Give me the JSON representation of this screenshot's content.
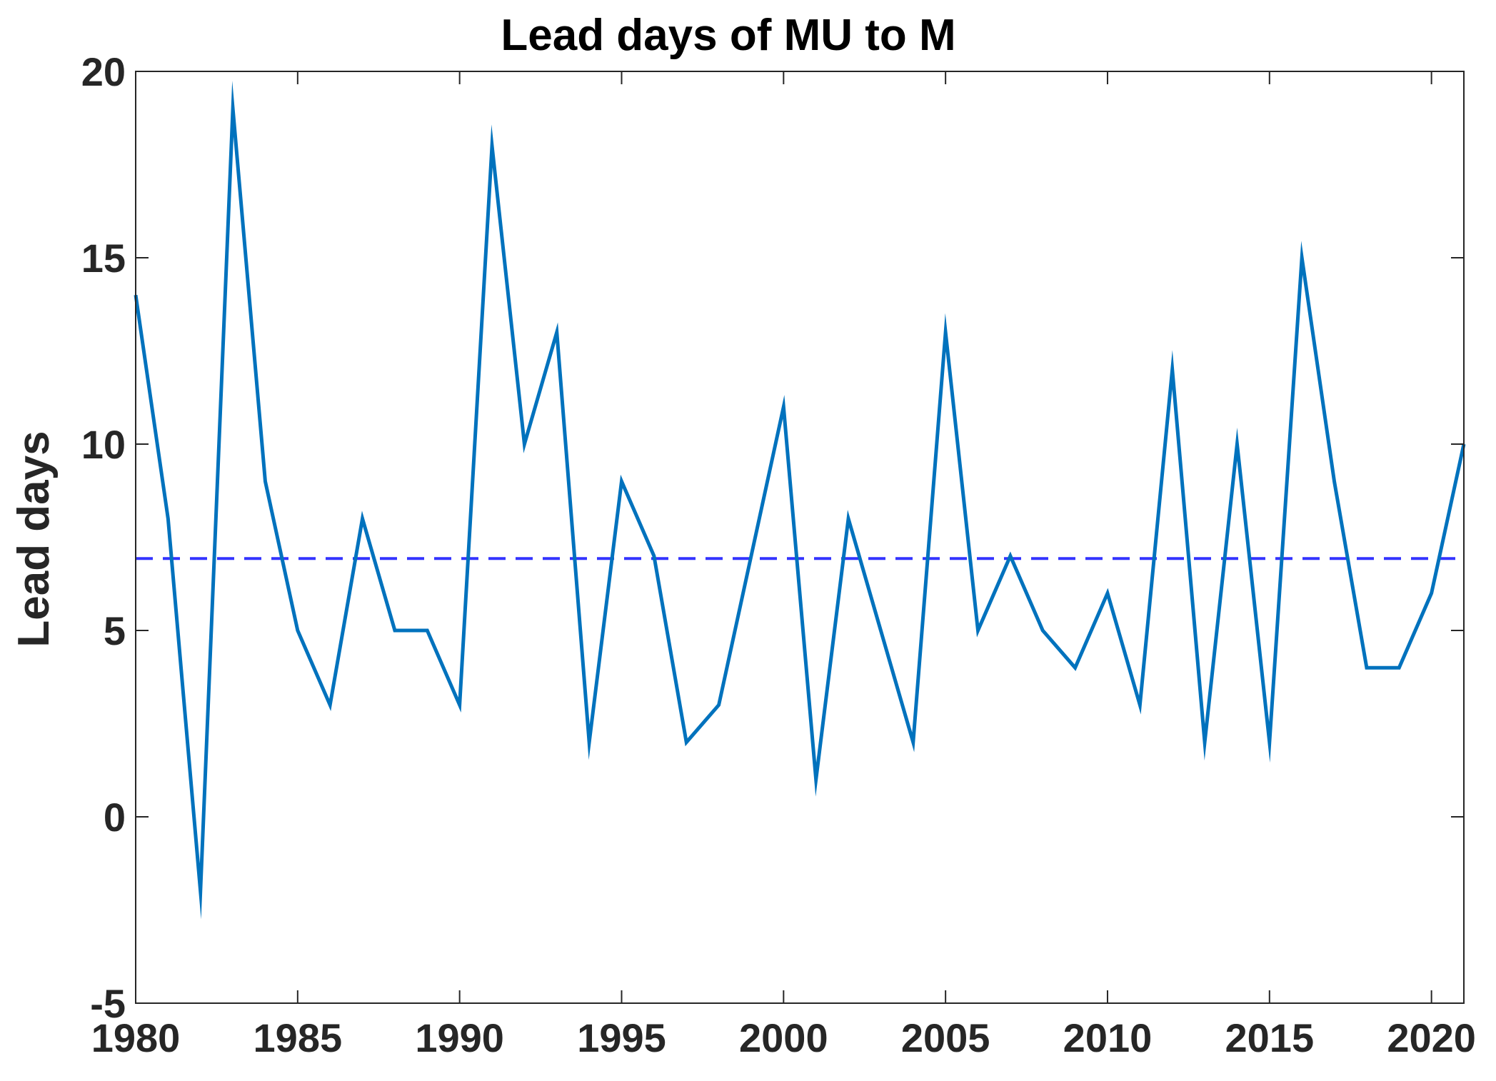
{
  "chart_data": {
    "type": "line",
    "title": "Lead days of MU to M",
    "xlabel": "",
    "ylabel": "Lead days",
    "xlim": [
      1980,
      2021
    ],
    "ylim": [
      -5,
      20
    ],
    "xticks": [
      1980,
      1985,
      1990,
      1995,
      2000,
      2005,
      2010,
      2015,
      2020
    ],
    "yticks": [
      -5,
      0,
      5,
      10,
      15,
      20
    ],
    "grid": false,
    "series": [
      {
        "color": "#0072BD",
        "style": "solid",
        "x": [
          1980,
          1981,
          1982,
          1983,
          1984,
          1985,
          1986,
          1987,
          1988,
          1989,
          1990,
          1991,
          1992,
          1993,
          1994,
          1995,
          1996,
          1997,
          1998,
          1999,
          2000,
          2001,
          2002,
          2003,
          2004,
          2005,
          2006,
          2007,
          2008,
          2009,
          2010,
          2011,
          2012,
          2013,
          2014,
          2015,
          2016,
          2017,
          2018,
          2019,
          2020,
          2021
        ],
        "values": [
          14,
          8,
          -2,
          19,
          9,
          5,
          3,
          8,
          5,
          5,
          3,
          18,
          10,
          13,
          2,
          9,
          7,
          2,
          3,
          7,
          11,
          1,
          8,
          5,
          2,
          13,
          5,
          7,
          5,
          4,
          6,
          3,
          12,
          2,
          10,
          2,
          15,
          9,
          4,
          4,
          6,
          10
        ]
      }
    ],
    "reference_line": {
      "value": 6.93,
      "color": "#3333FF",
      "style": "dashed"
    }
  }
}
